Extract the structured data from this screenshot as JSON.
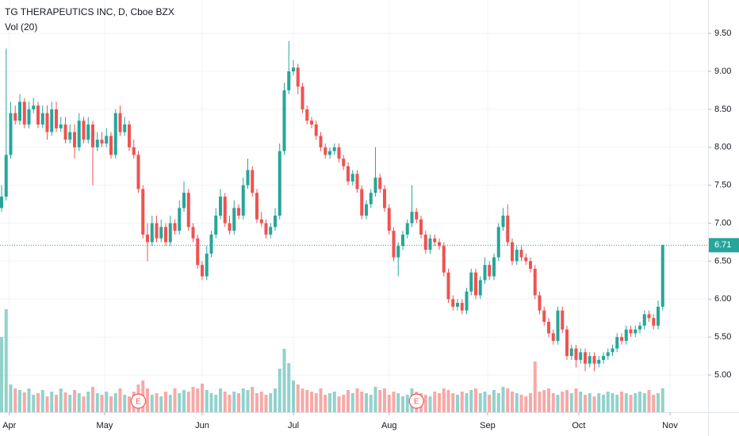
{
  "chart_data": {
    "type": "candlestick",
    "title": "TG THERAPEUTICS INC, D, Cboe BZX",
    "volume_label": "Vol (20)",
    "up_color": "#26a69a",
    "down_color": "#ef5350",
    "ylim": [
      4.51,
      9.94
    ],
    "yticks": [
      {
        "value": 5.0,
        "label": "5.00"
      },
      {
        "value": 5.5,
        "label": "5.50"
      },
      {
        "value": 6.0,
        "label": "6.00"
      },
      {
        "value": 6.5,
        "label": "6.50"
      },
      {
        "value": 7.0,
        "label": "7.00"
      },
      {
        "value": 7.5,
        "label": "7.50"
      },
      {
        "value": 8.0,
        "label": "8.00"
      },
      {
        "value": 8.5,
        "label": "8.50"
      },
      {
        "value": 9.0,
        "label": "9.00"
      },
      {
        "value": 9.5,
        "label": "9.50"
      }
    ],
    "xticks": [
      {
        "value": 1.7,
        "label": "Apr"
      },
      {
        "value": 22.6,
        "label": "May"
      },
      {
        "value": 44,
        "label": "Jun"
      },
      {
        "value": 64,
        "label": "Jul"
      },
      {
        "value": 85,
        "label": "Aug"
      },
      {
        "value": 106.6,
        "label": "Sep"
      },
      {
        "value": 126.6,
        "label": "Oct"
      },
      {
        "value": 146.6,
        "label": "Nov"
      }
    ],
    "grid": true,
    "events": [
      {
        "index": 30,
        "label": "E"
      },
      {
        "index": 91,
        "label": "E"
      }
    ],
    "open": [
      7.2,
      7.35,
      7.9,
      8.45,
      8.35,
      8.6,
      8.3,
      8.5,
      8.55,
      8.3,
      8.45,
      8.2,
      8.5,
      8.25,
      8.3,
      8.1,
      8.2,
      8.0,
      8.35,
      8.1,
      8.3,
      8.0,
      8.1,
      8.05,
      8.15,
      7.9,
      8.45,
      8.2,
      8.3,
      8.0,
      7.9,
      7.45,
      6.85,
      6.75,
      7.0,
      6.8,
      6.95,
      6.75,
      7.0,
      6.9,
      7.2,
      7.4,
      6.95,
      6.8,
      6.45,
      6.3,
      6.6,
      6.85,
      7.1,
      7.35,
      7.0,
      6.9,
      7.2,
      7.1,
      7.5,
      7.7,
      7.4,
      7.05,
      7.0,
      6.85,
      6.95,
      7.1,
      7.95,
      8.75,
      9.0,
      9.05,
      8.8,
      8.5,
      8.35,
      8.3,
      8.15,
      8.0,
      7.9,
      7.95,
      8.0,
      7.85,
      7.75,
      7.55,
      7.65,
      7.45,
      7.1,
      7.25,
      7.4,
      7.6,
      7.45,
      7.2,
      6.9,
      6.55,
      6.7,
      6.85,
      7.0,
      7.15,
      7.05,
      6.85,
      6.65,
      6.8,
      6.75,
      6.7,
      6.35,
      6.0,
      5.9,
      5.95,
      5.85,
      6.1,
      6.35,
      6.05,
      6.25,
      6.45,
      6.3,
      6.55,
      6.95,
      7.1,
      6.75,
      6.5,
      6.65,
      6.55,
      6.5,
      6.4,
      6.05,
      5.85,
      5.7,
      5.55,
      5.45,
      5.85,
      5.6,
      5.25,
      5.35,
      5.2,
      5.3,
      5.15,
      5.25,
      5.15,
      5.2,
      5.25,
      5.3,
      5.35,
      5.5,
      5.45,
      5.6,
      5.55,
      5.6,
      5.65,
      5.8,
      5.75,
      5.65,
      5.9
    ],
    "high": [
      7.5,
      9.3,
      8.6,
      8.55,
      8.7,
      8.65,
      8.6,
      8.65,
      8.6,
      8.55,
      8.55,
      8.6,
      8.6,
      8.4,
      8.4,
      8.3,
      8.3,
      8.45,
      8.4,
      8.4,
      8.35,
      8.2,
      8.2,
      8.25,
      8.2,
      8.5,
      8.55,
      8.4,
      8.35,
      8.1,
      7.95,
      7.5,
      7.0,
      7.1,
      7.1,
      7.05,
      7.0,
      7.1,
      7.05,
      7.3,
      7.55,
      7.45,
      7.0,
      6.85,
      6.5,
      6.7,
      6.9,
      7.2,
      7.45,
      7.4,
      7.1,
      7.3,
      7.25,
      7.6,
      7.85,
      7.75,
      7.45,
      7.15,
      7.05,
      7.0,
      7.2,
      8.05,
      8.85,
      9.4,
      9.15,
      9.1,
      8.85,
      8.55,
      8.4,
      8.35,
      8.2,
      8.05,
      8.0,
      8.05,
      8.05,
      7.9,
      7.8,
      7.7,
      7.7,
      7.5,
      7.3,
      7.45,
      8.0,
      7.65,
      7.5,
      7.25,
      6.95,
      6.75,
      6.9,
      7.05,
      7.5,
      7.2,
      7.1,
      6.9,
      6.85,
      6.85,
      6.8,
      6.75,
      6.4,
      6.05,
      6.0,
      6.0,
      6.15,
      6.4,
      6.4,
      6.3,
      6.55,
      6.5,
      6.6,
      7.0,
      7.2,
      7.25,
      6.8,
      6.7,
      6.7,
      6.6,
      6.55,
      6.45,
      6.1,
      5.9,
      5.75,
      5.6,
      5.9,
      5.9,
      5.65,
      5.4,
      5.4,
      5.35,
      5.35,
      5.3,
      5.3,
      5.25,
      5.3,
      5.35,
      5.4,
      5.55,
      5.55,
      5.65,
      5.65,
      5.65,
      5.7,
      5.85,
      5.85,
      5.8,
      5.98,
      6.72
    ],
    "low": [
      7.15,
      7.3,
      7.85,
      8.3,
      8.3,
      8.25,
      8.25,
      8.45,
      8.25,
      8.25,
      8.1,
      8.15,
      8.2,
      8.2,
      8.05,
      8.05,
      7.85,
      7.95,
      8.05,
      8.05,
      7.5,
      7.95,
      8.0,
      8.0,
      7.85,
      7.85,
      8.15,
      8.15,
      7.95,
      7.85,
      7.4,
      6.8,
      6.5,
      6.7,
      6.75,
      6.75,
      6.7,
      6.7,
      6.85,
      6.85,
      7.15,
      6.9,
      6.75,
      6.4,
      6.25,
      6.25,
      6.55,
      6.8,
      7.05,
      6.95,
      6.85,
      6.85,
      7.05,
      7.05,
      7.45,
      7.35,
      7.0,
      6.95,
      6.8,
      6.8,
      6.9,
      7.05,
      7.9,
      8.7,
      8.95,
      8.7,
      8.45,
      8.3,
      8.25,
      8.1,
      7.95,
      7.85,
      7.85,
      7.9,
      7.8,
      7.7,
      7.5,
      7.5,
      7.4,
      7.05,
      7.05,
      7.2,
      7.35,
      7.4,
      7.15,
      6.85,
      6.5,
      6.3,
      6.65,
      6.8,
      6.95,
      7.0,
      6.8,
      6.6,
      6.6,
      6.7,
      6.65,
      6.3,
      5.95,
      5.85,
      5.85,
      5.8,
      5.8,
      6.05,
      6.0,
      6.0,
      6.2,
      6.25,
      6.25,
      6.5,
      6.9,
      6.7,
      6.45,
      6.45,
      6.5,
      6.45,
      6.35,
      6.0,
      5.8,
      5.65,
      5.5,
      5.4,
      5.4,
      5.55,
      5.2,
      5.2,
      5.1,
      5.15,
      5.05,
      5.1,
      5.05,
      5.1,
      5.15,
      5.2,
      5.25,
      5.3,
      5.4,
      5.4,
      5.5,
      5.5,
      5.55,
      5.6,
      5.7,
      5.6,
      5.6,
      5.85
    ],
    "close": [
      7.35,
      7.9,
      8.45,
      8.35,
      8.6,
      8.3,
      8.5,
      8.55,
      8.3,
      8.45,
      8.2,
      8.5,
      8.25,
      8.3,
      8.1,
      8.2,
      8.0,
      8.35,
      8.1,
      8.3,
      8.0,
      8.1,
      8.05,
      8.15,
      7.9,
      8.45,
      8.2,
      8.3,
      8.0,
      7.9,
      7.45,
      6.85,
      6.75,
      7.0,
      6.8,
      6.95,
      6.75,
      7.0,
      6.9,
      7.2,
      7.4,
      6.95,
      6.8,
      6.45,
      6.3,
      6.6,
      6.85,
      7.1,
      7.35,
      7.0,
      6.9,
      7.2,
      7.1,
      7.5,
      7.7,
      7.4,
      7.05,
      7.0,
      6.85,
      6.95,
      7.1,
      7.95,
      8.75,
      9.0,
      9.05,
      8.8,
      8.5,
      8.35,
      8.3,
      8.15,
      8.0,
      7.9,
      7.95,
      8.0,
      7.85,
      7.75,
      7.55,
      7.65,
      7.45,
      7.1,
      7.25,
      7.4,
      7.6,
      7.45,
      7.2,
      6.9,
      6.55,
      6.7,
      6.85,
      7.0,
      7.15,
      7.05,
      6.85,
      6.65,
      6.8,
      6.75,
      6.7,
      6.35,
      6.0,
      5.9,
      5.95,
      5.85,
      6.1,
      6.35,
      6.05,
      6.25,
      6.45,
      6.3,
      6.55,
      6.95,
      7.1,
      6.75,
      6.5,
      6.65,
      6.55,
      6.5,
      6.4,
      6.05,
      5.85,
      5.7,
      5.55,
      5.45,
      5.85,
      5.6,
      5.25,
      5.35,
      5.2,
      5.3,
      5.15,
      5.25,
      5.15,
      5.2,
      5.25,
      5.3,
      5.35,
      5.5,
      5.45,
      5.6,
      5.55,
      5.6,
      5.65,
      5.8,
      5.75,
      5.65,
      5.9,
      6.71
    ],
    "volume": [
      95,
      130,
      35,
      30,
      28,
      25,
      30,
      22,
      24,
      28,
      20,
      26,
      22,
      30,
      25,
      22,
      28,
      24,
      20,
      26,
      32,
      24,
      22,
      26,
      20,
      24,
      30,
      22,
      20,
      26,
      35,
      40,
      30,
      22,
      24,
      20,
      26,
      22,
      30,
      24,
      28,
      26,
      32,
      30,
      36,
      28,
      24,
      22,
      30,
      26,
      22,
      26,
      24,
      30,
      28,
      32,
      24,
      26,
      22,
      24,
      30,
      55,
      80,
      62,
      40,
      35,
      30,
      28,
      26,
      24,
      30,
      22,
      24,
      26,
      20,
      22,
      28,
      24,
      30,
      26,
      24,
      22,
      32,
      28,
      30,
      22,
      26,
      24,
      20,
      22,
      30,
      26,
      24,
      22,
      20,
      26,
      24,
      30,
      28,
      24,
      22,
      26,
      24,
      28,
      30,
      24,
      26,
      22,
      28,
      24,
      32,
      30,
      26,
      24,
      22,
      20,
      24,
      64,
      26,
      28,
      30,
      24,
      22,
      26,
      28,
      24,
      30,
      26,
      22,
      24,
      20,
      24,
      22,
      26,
      24,
      22,
      26,
      24,
      22,
      24,
      26,
      24,
      28,
      22,
      24,
      30
    ]
  }
}
